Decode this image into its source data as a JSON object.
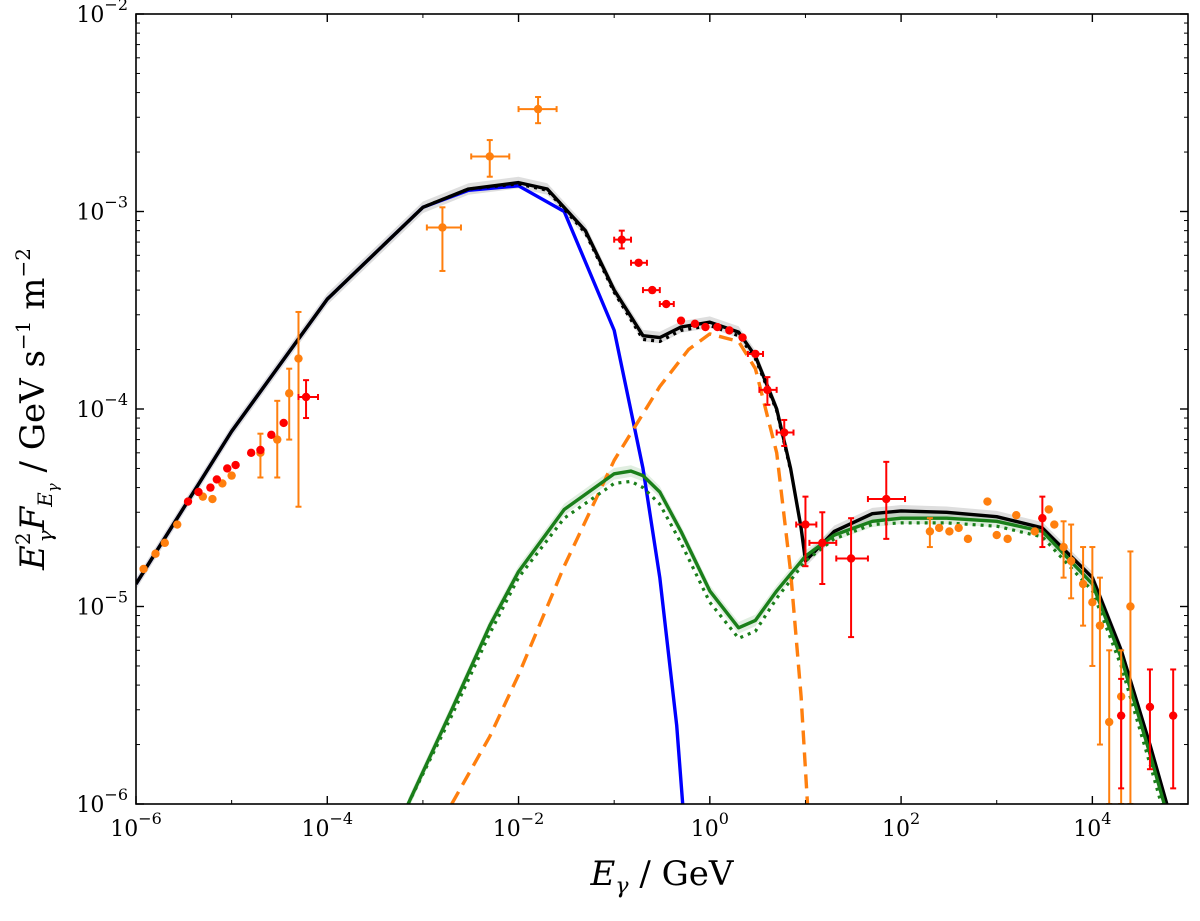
{
  "chart_data": {
    "type": "line",
    "title": "",
    "xlabel": "E_γ / GeV",
    "ylabel": "E²_γ F_Eγ / GeV s⁻¹ m⁻²",
    "x_scale": "log",
    "y_scale": "log",
    "xlim": [
      1e-06,
      100000
    ],
    "ylim": [
      1e-06,
      0.01
    ],
    "x_ticks": [
      {
        "value": 1e-06,
        "base": "10",
        "exp": "−6"
      },
      {
        "value": 0.0001,
        "base": "10",
        "exp": "−4"
      },
      {
        "value": 0.01,
        "base": "10",
        "exp": "−2"
      },
      {
        "value": 1,
        "base": "10",
        "exp": "0"
      },
      {
        "value": 100,
        "base": "10",
        "exp": "2"
      },
      {
        "value": 10000,
        "base": "10",
        "exp": "4"
      }
    ],
    "y_ticks": [
      {
        "value": 1e-06,
        "base": "10",
        "exp": "−6"
      },
      {
        "value": 1e-05,
        "base": "10",
        "exp": "−5"
      },
      {
        "value": 0.0001,
        "base": "10",
        "exp": "−4"
      },
      {
        "value": 0.001,
        "base": "10",
        "exp": "−3"
      },
      {
        "value": 0.01,
        "base": "10",
        "exp": "−2"
      }
    ],
    "grid": false,
    "legend": "none",
    "series": [
      {
        "style": "solid",
        "color": "#0000ff",
        "x": [
          1e-06,
          1e-05,
          0.0001,
          0.001,
          0.003,
          0.01,
          0.03,
          0.1,
          0.2,
          0.3,
          0.45,
          0.52
        ],
        "y": [
          1.3e-05,
          7.7e-05,
          0.00036,
          0.00105,
          0.00128,
          0.00135,
          0.001,
          0.00025,
          5e-05,
          1.4e-05,
          2.5e-06,
          1e-06
        ]
      },
      {
        "style": "solid",
        "color": "#000000",
        "band": true,
        "x": [
          1e-06,
          1e-05,
          0.0001,
          0.001,
          0.003,
          0.01,
          0.02,
          0.05,
          0.1,
          0.2,
          0.3,
          0.5,
          1,
          2,
          3,
          5,
          7,
          9,
          10,
          20,
          50,
          100,
          300,
          1000,
          3000,
          10000,
          20000,
          40000,
          60000
        ],
        "y": [
          1.3e-05,
          7.7e-05,
          0.00036,
          0.00105,
          0.0013,
          0.0014,
          0.0013,
          0.0008,
          0.0004,
          0.000235,
          0.00023,
          0.00026,
          0.000275,
          0.000245,
          0.000185,
          0.0001,
          5e-05,
          2.5e-05,
          1.7e-05,
          2.4e-05,
          2.95e-05,
          3.05e-05,
          3e-05,
          2.85e-05,
          2.5e-05,
          1.4e-05,
          6e-06,
          2e-06,
          1e-06
        ]
      },
      {
        "style": "dashed",
        "color": "#ff7f0e",
        "x": [
          0.002,
          0.005,
          0.01,
          0.03,
          0.1,
          0.3,
          0.6,
          1,
          2,
          3,
          5,
          7,
          9,
          10.5
        ],
        "y": [
          1e-06,
          2.2e-06,
          4.5e-06,
          1.6e-05,
          5.5e-05,
          0.00013,
          0.0002,
          0.00024,
          0.00022,
          0.00016,
          6e-05,
          1.5e-05,
          3.5e-06,
          1e-06
        ]
      },
      {
        "style": "solid",
        "color": "#1a7f1a",
        "band": true,
        "x": [
          0.0007,
          0.002,
          0.005,
          0.01,
          0.03,
          0.1,
          0.15,
          0.2,
          0.3,
          0.5,
          1,
          2,
          3,
          5,
          10,
          20,
          50,
          100,
          300,
          1000,
          3000,
          10000,
          20000,
          40000,
          60000
        ],
        "y": [
          1e-06,
          3e-06,
          8e-06,
          1.5e-05,
          3.1e-05,
          4.7e-05,
          4.85e-05,
          4.6e-05,
          3.8e-05,
          2.4e-05,
          1.2e-05,
          7.8e-06,
          8.5e-06,
          1.2e-05,
          1.8e-05,
          2.3e-05,
          2.7e-05,
          2.8e-05,
          2.8e-05,
          2.7e-05,
          2.4e-05,
          1.3e-05,
          5.5e-06,
          1.8e-06,
          9e-07
        ]
      },
      {
        "style": "dotted",
        "color": "#1a7f1a",
        "x": [
          0.0007,
          0.002,
          0.005,
          0.01,
          0.03,
          0.1,
          0.15,
          0.2,
          0.3,
          0.5,
          1,
          2,
          3,
          5,
          10,
          20,
          50,
          100,
          300,
          1000,
          3000,
          10000,
          20000,
          40000,
          60000
        ],
        "y": [
          1e-06,
          2.8e-06,
          7.3e-06,
          1.4e-05,
          2.8e-05,
          4.2e-05,
          4.3e-05,
          4e-05,
          3.3e-05,
          2.1e-05,
          1.05e-05,
          6.9e-06,
          7.5e-06,
          1.1e-05,
          1.7e-05,
          2.2e-05,
          2.6e-05,
          2.65e-05,
          2.65e-05,
          2.55e-05,
          2.25e-05,
          1.2e-05,
          5e-06,
          1.6e-06,
          8e-07
        ]
      },
      {
        "style": "dotted",
        "color": "#000000",
        "x": [
          0.0001,
          0.001,
          0.003,
          0.01,
          0.02,
          0.05,
          0.1,
          0.2,
          0.3,
          0.5,
          1,
          2,
          3,
          5,
          7
        ],
        "y": [
          0.00036,
          0.00105,
          0.0013,
          0.00138,
          0.00128,
          0.00078,
          0.00039,
          0.000225,
          0.00022,
          0.00025,
          0.000265,
          0.000235,
          0.00018,
          9.8e-05,
          4.9e-05
        ]
      }
    ],
    "data_sets": [
      {
        "color": "#ff7f0e",
        "points": [
          {
            "x": 1.2e-06,
            "y": 1.55e-05
          },
          {
            "x": 1.6e-06,
            "y": 1.85e-05
          },
          {
            "x": 2e-06,
            "y": 2.1e-05
          },
          {
            "x": 2.7e-06,
            "y": 2.6e-05
          },
          {
            "x": 5e-06,
            "y": 3.6e-05
          },
          {
            "x": 6.3e-06,
            "y": 3.5e-05
          },
          {
            "x": 8e-06,
            "y": 4.2e-05
          },
          {
            "x": 1e-05,
            "y": 4.6e-05
          },
          {
            "x": 2e-05,
            "y": 6e-05,
            "yerr": [
              4.5e-05,
              7.5e-05
            ]
          },
          {
            "x": 3e-05,
            "y": 7e-05,
            "yerr": [
              4.5e-05,
              0.00011
            ]
          },
          {
            "x": 4e-05,
            "y": 0.00012,
            "yerr": [
              7e-05,
              0.00016
            ]
          },
          {
            "x": 5e-05,
            "y": 0.00018,
            "yerr": [
              3.2e-05,
              0.00031
            ]
          },
          {
            "x": 0.0016,
            "y": 0.00083,
            "xerr": [
              0.0011,
              0.0025
            ],
            "yerr": [
              0.0005,
              0.00105
            ]
          },
          {
            "x": 0.005,
            "y": 0.0019,
            "xerr": [
              0.0032,
              0.008
            ],
            "yerr": [
              0.0015,
              0.0023
            ]
          },
          {
            "x": 0.016,
            "y": 0.0033,
            "xerr": [
              0.01,
              0.025
            ],
            "yerr": [
              0.0028,
              0.0038
            ]
          },
          {
            "x": 200,
            "y": 2.4e-05,
            "yerr": [
              2e-05,
              2.8e-05
            ]
          },
          {
            "x": 250,
            "y": 2.5e-05
          },
          {
            "x": 320,
            "y": 2.4e-05
          },
          {
            "x": 400,
            "y": 2.5e-05
          },
          {
            "x": 500,
            "y": 2.2e-05
          },
          {
            "x": 800,
            "y": 3.4e-05
          },
          {
            "x": 1000,
            "y": 2.3e-05
          },
          {
            "x": 1300,
            "y": 2.2e-05
          },
          {
            "x": 1600,
            "y": 2.9e-05
          },
          {
            "x": 2500,
            "y": 2.4e-05
          },
          {
            "x": 3000,
            "y": 2.8e-05
          },
          {
            "x": 3500,
            "y": 3.1e-05
          },
          {
            "x": 4000,
            "y": 2.6e-05
          },
          {
            "x": 5000,
            "y": 2e-05,
            "yerr": [
              1.4e-05,
              2.7e-05
            ]
          },
          {
            "x": 6000,
            "y": 1.7e-05,
            "yerr": [
              1.1e-05,
              2.6e-05
            ]
          },
          {
            "x": 8000,
            "y": 1.3e-05,
            "yerr": [
              8e-06,
              2e-05
            ]
          },
          {
            "x": 10000,
            "y": 1.05e-05,
            "yerr": [
              5e-06,
              2e-05
            ]
          },
          {
            "x": 12000,
            "y": 8e-06,
            "yerr": [
              2e-06,
              1.4e-05
            ]
          },
          {
            "x": 15000,
            "y": 2.6e-06,
            "yerr": [
              1e-06,
              6e-06
            ]
          },
          {
            "x": 20000,
            "y": 3.5e-06,
            "yerr": [
              1e-06,
              6e-06
            ]
          },
          {
            "x": 25000,
            "y": 1e-05,
            "yerr": [
              1e-06,
              1.9e-05
            ]
          }
        ]
      },
      {
        "color": "#ff0000",
        "points": [
          {
            "x": 3.5e-06,
            "y": 3.4e-05
          },
          {
            "x": 4.5e-06,
            "y": 3.8e-05
          },
          {
            "x": 6e-06,
            "y": 4e-05
          },
          {
            "x": 7e-06,
            "y": 4.4e-05
          },
          {
            "x": 9e-06,
            "y": 5e-05
          },
          {
            "x": 1.1e-05,
            "y": 5.2e-05
          },
          {
            "x": 1.6e-05,
            "y": 6e-05
          },
          {
            "x": 2e-05,
            "y": 6.2e-05
          },
          {
            "x": 2.6e-05,
            "y": 7.4e-05
          },
          {
            "x": 3.5e-05,
            "y": 8.5e-05
          },
          {
            "x": 6e-05,
            "y": 0.000115,
            "xerr": [
              5e-05,
              8e-05
            ],
            "yerr": [
              9e-05,
              0.00014
            ]
          },
          {
            "x": 0.12,
            "y": 0.00072,
            "xerr": [
              0.1,
              0.15
            ],
            "yerr": [
              0.00065,
              0.0008
            ]
          },
          {
            "x": 0.18,
            "y": 0.00055,
            "xerr": [
              0.15,
              0.22
            ]
          },
          {
            "x": 0.25,
            "y": 0.0004,
            "xerr": [
              0.2,
              0.3
            ]
          },
          {
            "x": 0.35,
            "y": 0.00034,
            "xerr": [
              0.3,
              0.42
            ]
          },
          {
            "x": 0.5,
            "y": 0.00028
          },
          {
            "x": 0.7,
            "y": 0.00027
          },
          {
            "x": 0.9,
            "y": 0.00026
          },
          {
            "x": 1.2,
            "y": 0.00026
          },
          {
            "x": 1.6,
            "y": 0.00025
          },
          {
            "x": 2.2,
            "y": 0.00023
          },
          {
            "x": 3,
            "y": 0.00019,
            "xerr": [
              2.5,
              3.6
            ]
          },
          {
            "x": 4,
            "y": 0.000125,
            "xerr": [
              3.3,
              5
            ],
            "yerr": [
              0.000105,
              0.000145
            ]
          },
          {
            "x": 6,
            "y": 7.6e-05,
            "xerr": [
              5,
              7.5
            ],
            "yerr": [
              6.5e-05,
              8.8e-05
            ]
          },
          {
            "x": 10,
            "y": 2.6e-05,
            "xerr": [
              8,
              13
            ],
            "yerr": [
              1.6e-05,
              3.6e-05
            ]
          },
          {
            "x": 15,
            "y": 2.1e-05,
            "xerr": [
              11,
              21
            ],
            "yerr": [
              1.3e-05,
              3e-05
            ]
          },
          {
            "x": 30,
            "y": 1.75e-05,
            "xerr": [
              21,
              45
            ],
            "yerr": [
              7e-06,
              2.8e-05
            ]
          },
          {
            "x": 70,
            "y": 3.5e-05,
            "xerr": [
              45,
              110
            ],
            "yerr": [
              2.2e-05,
              5.4e-05
            ]
          },
          {
            "x": 3000,
            "y": 2.8e-05,
            "yerr": [
              2e-05,
              3.6e-05
            ]
          },
          {
            "x": 20000,
            "y": 2.8e-06,
            "yerr": [
              1.2e-06,
              4.3e-06
            ]
          },
          {
            "x": 40000,
            "y": 3.1e-06,
            "yerr": [
              1.5e-06,
              4.8e-06
            ]
          },
          {
            "x": 70000,
            "y": 2.8e-06,
            "yerr": [
              1.2e-06,
              4.8e-06
            ]
          }
        ]
      }
    ]
  }
}
